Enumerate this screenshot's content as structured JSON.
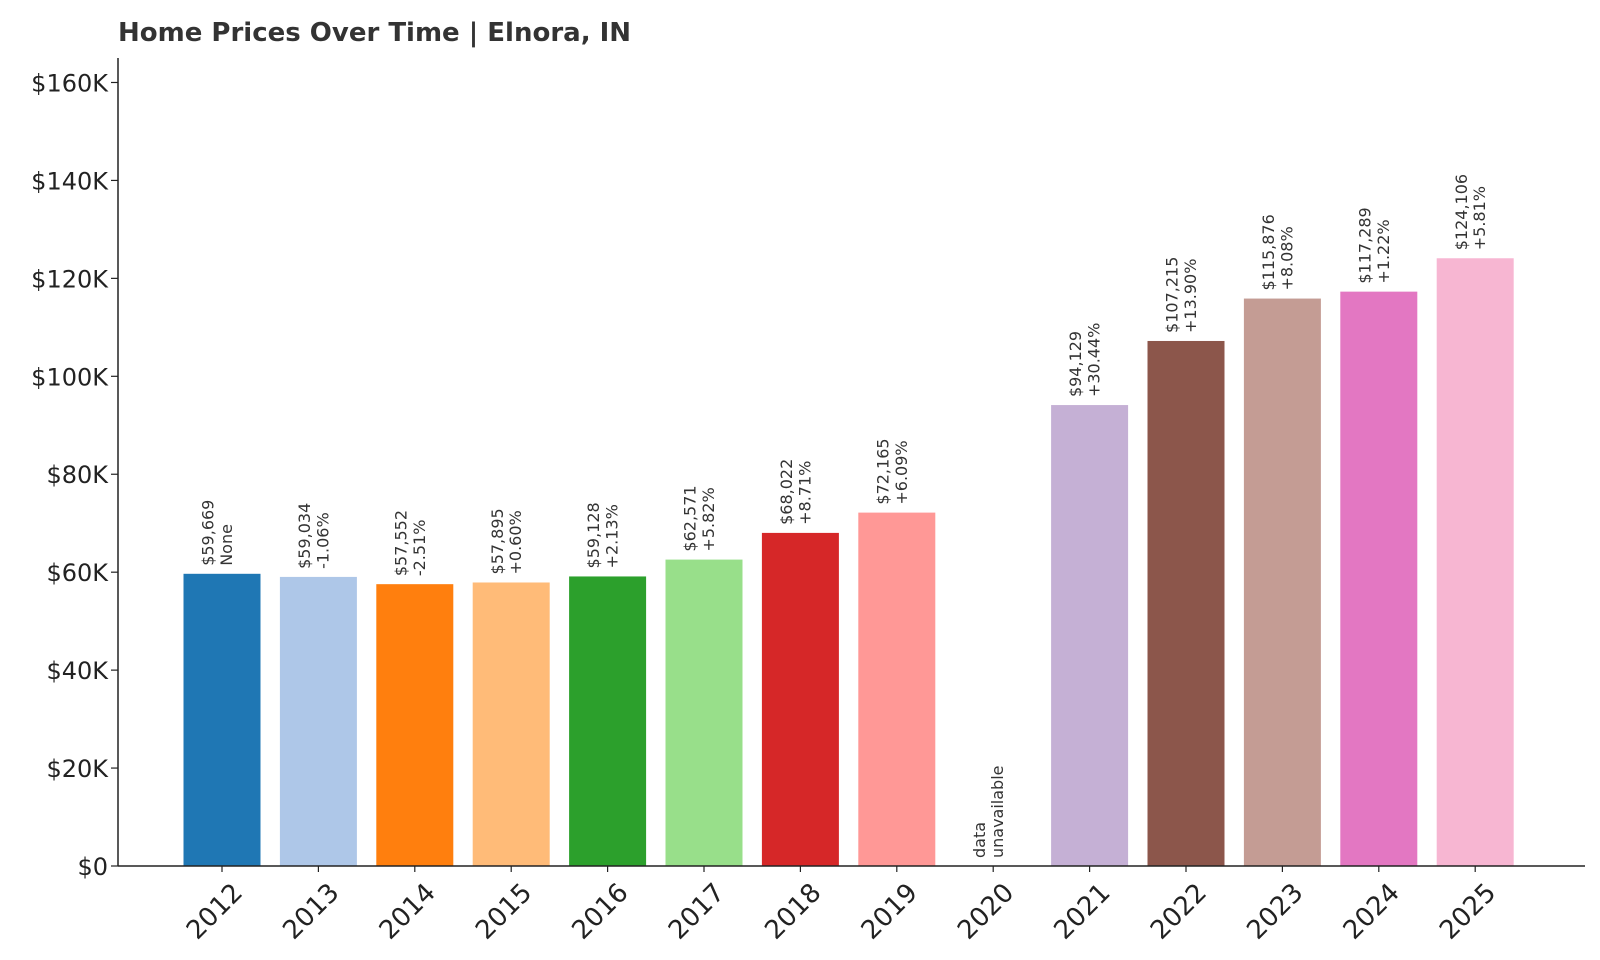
{
  "chart_data": {
    "type": "bar",
    "title": "Home Prices Over Time | Elnora, IN",
    "xlabel": "",
    "ylabel": "",
    "ylim": [
      0,
      165000
    ],
    "yticks": [
      {
        "value": 0,
        "label": "$0"
      },
      {
        "value": 20000,
        "label": "$20K"
      },
      {
        "value": 40000,
        "label": "$40K"
      },
      {
        "value": 60000,
        "label": "$60K"
      },
      {
        "value": 80000,
        "label": "$80K"
      },
      {
        "value": 100000,
        "label": "$100K"
      },
      {
        "value": 120000,
        "label": "$120K"
      },
      {
        "value": 140000,
        "label": "$140K"
      },
      {
        "value": 160000,
        "label": "$160K"
      }
    ],
    "categories": [
      "2012",
      "2013",
      "2014",
      "2015",
      "2016",
      "2017",
      "2018",
      "2019",
      "2020",
      "2021",
      "2022",
      "2023",
      "2024",
      "2025"
    ],
    "values": [
      59669,
      59034,
      57552,
      57895,
      59128,
      62571,
      68022,
      72165,
      null,
      94129,
      107215,
      115876,
      117289,
      124106
    ],
    "value_labels": [
      "$59,669",
      "$59,034",
      "$57,552",
      "$57,895",
      "$59,128",
      "$62,571",
      "$68,022",
      "$72,165",
      "data",
      "$94,129",
      "$107,215",
      "$115,876",
      "$117,289",
      "$124,106"
    ],
    "change_labels": [
      "None",
      "-1.06%",
      "-2.51%",
      "+0.60%",
      "+2.13%",
      "+5.82%",
      "+8.71%",
      "+6.09%",
      "unavailable",
      "+30.44%",
      "+13.90%",
      "+8.08%",
      "+1.22%",
      "+5.81%"
    ],
    "colors": [
      "#1f77b4",
      "#aec7e8",
      "#ff7f0e",
      "#ffbb78",
      "#2ca02c",
      "#98df8a",
      "#d62728",
      "#ff9896",
      "#9467bd",
      "#c5b0d5",
      "#8c564b",
      "#c49c94",
      "#e377c2",
      "#f7b6d2"
    ],
    "grid": false,
    "legend": "none"
  }
}
